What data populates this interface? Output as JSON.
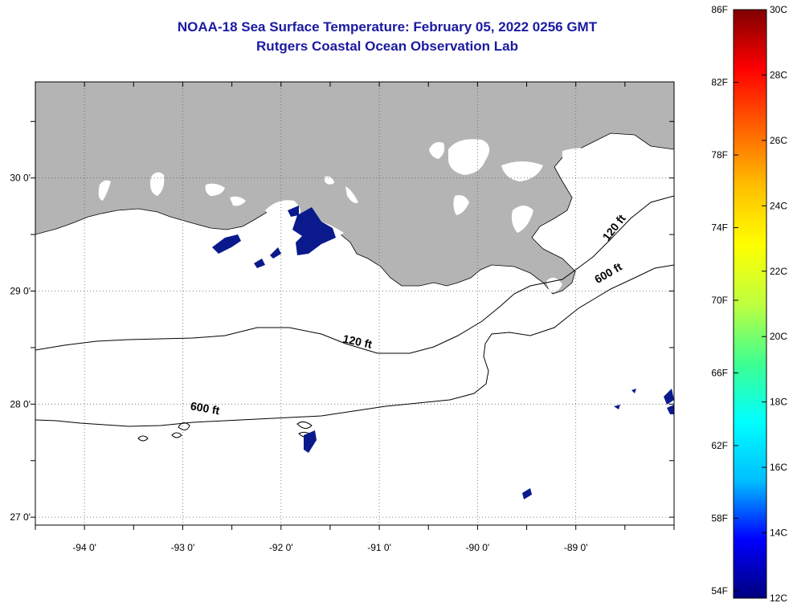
{
  "title": {
    "line1": "NOAA-18 Sea Surface Temperature:  February 05, 2022 0256 GMT",
    "line2": "Rutgers Coastal Ocean Observation Lab"
  },
  "map": {
    "lon_range": [
      -94.5,
      -88.0
    ],
    "lat_range": [
      26.93,
      30.85
    ],
    "lon_ticks": [
      {
        "value": -94,
        "label": "-94 0'"
      },
      {
        "value": -93,
        "label": "-93 0'"
      },
      {
        "value": -92,
        "label": "-92 0'"
      },
      {
        "value": -91,
        "label": "-91 0'"
      },
      {
        "value": -90,
        "label": "-90 0'"
      },
      {
        "value": -89,
        "label": "-89 0'"
      }
    ],
    "lat_ticks": [
      {
        "value": 30,
        "label": "30 0'"
      },
      {
        "value": 29,
        "label": "29 0'"
      },
      {
        "value": 28,
        "label": "28 0'"
      },
      {
        "value": 27,
        "label": "27 0'"
      }
    ],
    "grid": "dotted",
    "land_color": "#b4b4b4",
    "cloud_color": "#ffffff",
    "sst_patch_color": "#0a1a8c",
    "contours": [
      {
        "label": "120 ft"
      },
      {
        "label": "600 ft"
      }
    ],
    "contour_labels": [
      {
        "text": "120 ft",
        "lon": -91.23,
        "lat": 28.52,
        "angle": 12
      },
      {
        "text": "600 ft",
        "lon": -92.78,
        "lat": 27.93,
        "angle": 10
      },
      {
        "text": "120 ft",
        "lon": -88.58,
        "lat": 29.54,
        "angle": -52
      },
      {
        "text": "600 ft",
        "lon": -88.65,
        "lat": 29.13,
        "angle": -30
      }
    ]
  },
  "colorbar": {
    "left_labels": [
      {
        "value": 86,
        "label": "86F"
      },
      {
        "value": 82,
        "label": "82F"
      },
      {
        "value": 78,
        "label": "78F"
      },
      {
        "value": 74,
        "label": "74F"
      },
      {
        "value": 70,
        "label": "70F"
      },
      {
        "value": 66,
        "label": "66F"
      },
      {
        "value": 62,
        "label": "62F"
      },
      {
        "value": 58,
        "label": "58F"
      },
      {
        "value": 54,
        "label": "54F"
      }
    ],
    "right_labels": [
      {
        "value": 30,
        "label": "30C"
      },
      {
        "value": 28,
        "label": "28C"
      },
      {
        "value": 26,
        "label": "26C"
      },
      {
        "value": 24,
        "label": "24C"
      },
      {
        "value": 22,
        "label": "22C"
      },
      {
        "value": 20,
        "label": "20C"
      },
      {
        "value": 18,
        "label": "18C"
      },
      {
        "value": 16,
        "label": "16C"
      },
      {
        "value": 14,
        "label": "14C"
      },
      {
        "value": 12,
        "label": "12C"
      }
    ],
    "range_c": [
      12,
      30
    ],
    "colors": [
      "#00007f",
      "#0000ff",
      "#00bfff",
      "#00ffff",
      "#3fff8f",
      "#bfff3f",
      "#ffff00",
      "#ffbf00",
      "#ff6000",
      "#ff0000",
      "#7f0000"
    ]
  }
}
